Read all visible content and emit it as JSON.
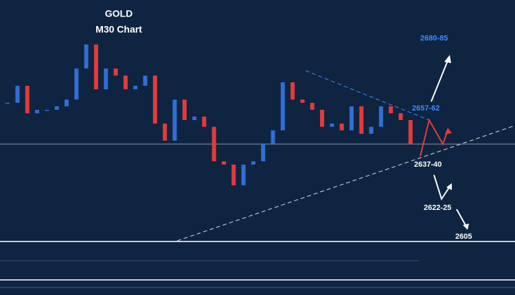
{
  "chart_data": {
    "type": "candlestick",
    "title": "GOLD",
    "subtitle": "M30 Chart",
    "ylim": [
      2590,
      2700
    ],
    "closes": [
      2652.9,
      2660.7,
      2648.1,
      2649.7,
      2649.7,
      2651.3,
      2654.4,
      2668.6,
      2679.6,
      2659.1,
      2668.6,
      2665.4,
      2659.1,
      2660.7,
      2665.4,
      2643.4,
      2635.6,
      2654.4,
      2645.0,
      2646.6,
      2641.9,
      2626.1,
      2624.6,
      2615.1,
      2624.6,
      2626.1,
      2634.0,
      2640.3,
      2662.3,
      2654.4,
      2652.9,
      2649.7,
      2641.9,
      2643.4,
      2640.3,
      2651.3,
      2638.7,
      2641.9,
      2651.3,
      2648.1,
      2645.0,
      2634.0
    ],
    "up_color": "#2f6fd6",
    "down_color": "#e23b3b",
    "annotations": [
      {
        "text": "2680-85",
        "color": "#3b8cff"
      },
      {
        "text": "2657-62",
        "color": "#3b8cff"
      },
      {
        "text": "2637-40",
        "color": "#ffffff"
      },
      {
        "text": "2622-25",
        "color": "#ffffff"
      },
      {
        "text": "2605",
        "color": "#ffffff"
      }
    ]
  }
}
